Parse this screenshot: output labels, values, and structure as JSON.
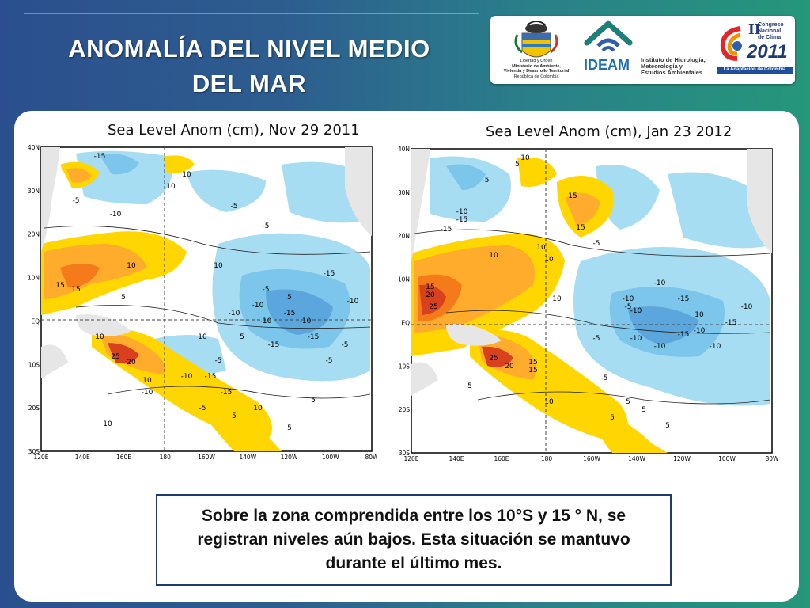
{
  "slide": {
    "title_line1": "ANOMALÍA DEL NIVEL MEDIO",
    "title_line2": "DEL MAR",
    "caption": "Sobre la zona comprendida entre los 10°S  y 15 ° N, se registran niveles aún bajos. Esta situación se mantuvo durante el último mes."
  },
  "logos": {
    "gov_lines": [
      "Libertad y Orden",
      "Ministerio de Ambiente,",
      "Vivienda y Desarrollo Territorial",
      "República de Colombia"
    ],
    "ideam": "IDEAM",
    "ideam_desc": [
      "Instituto de Hidrología,",
      "Meteorología y",
      "Estudios Ambientales"
    ],
    "congreso_numeral": "II",
    "congreso_lines": [
      "Congreso",
      "Nacional",
      "de Clima"
    ],
    "congreso_year": "2011",
    "congreso_tag": "La Adaptación de Colombia"
  },
  "maps": [
    {
      "title": "Sea Level Anom (cm), Nov 29 2011",
      "lat_labels": [
        "40N",
        "30N",
        "20N",
        "10N",
        "EQ",
        "10S",
        "20S",
        "30S"
      ],
      "lon_labels": [
        "120E",
        "140E",
        "160E",
        "180",
        "160W",
        "140W",
        "120W",
        "100W",
        "80W"
      ],
      "contour_labels": [
        "-15",
        "10",
        "10",
        "-5",
        "-10",
        "-5",
        "-5",
        "15",
        "10",
        "15",
        "5",
        "10",
        "-5",
        "-10",
        "-15",
        "-15",
        "-10",
        "-10",
        "-10",
        "-15",
        "10",
        "-15",
        "25",
        "20",
        "10",
        "-5",
        "-10",
        "-15",
        "-10",
        "-5",
        "5",
        "10",
        "-5",
        "10",
        "5",
        "5",
        "10",
        "5",
        "5",
        "-10",
        "-15",
        "-5"
      ]
    },
    {
      "title": "Sea Level Anom (cm), Jan 23 2012",
      "lat_labels": [
        "40N",
        "30N",
        "20N",
        "10N",
        "EQ",
        "10S",
        "20S",
        "30S"
      ],
      "lon_labels": [
        "120E",
        "140E",
        "160E",
        "180",
        "160W",
        "140W",
        "120W",
        "100W",
        "80W"
      ],
      "contour_labels": [
        "-15",
        "5",
        "-5",
        "-10",
        "-15",
        "10",
        "15",
        "-10",
        "-5",
        "10",
        "15",
        "10",
        "-10",
        "10",
        "-5",
        "15",
        "20",
        "25",
        "10",
        "-15",
        "-10",
        "-10",
        "-10",
        "-15",
        "-10",
        "5",
        "15",
        "25",
        "20",
        "15",
        "-5",
        "10",
        "5",
        "5",
        "5",
        "10",
        "-5",
        "-10",
        "-15",
        "-10",
        "5"
      ]
    }
  ]
}
